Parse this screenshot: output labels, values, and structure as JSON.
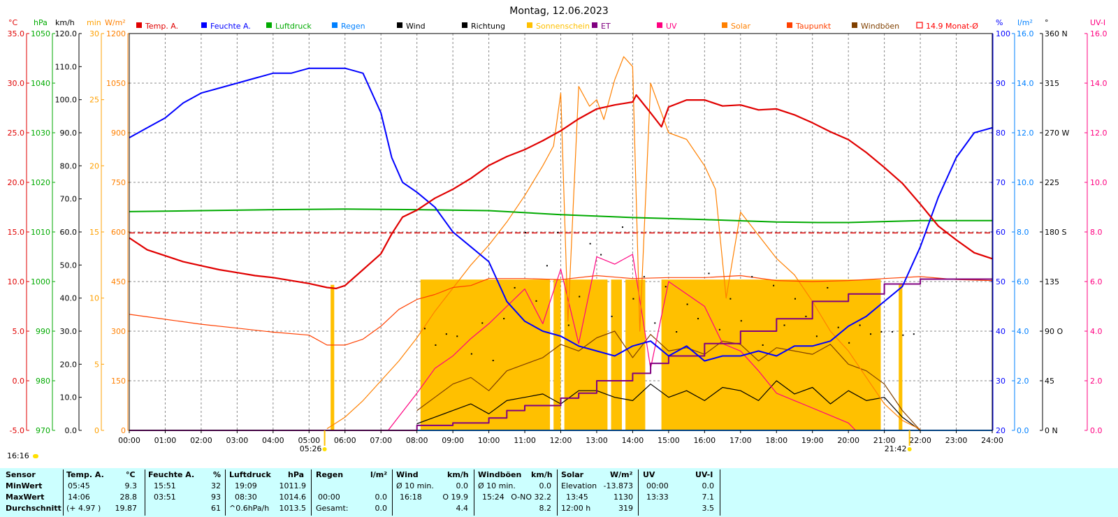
{
  "title": "Montag, 12.06.2023",
  "now_time": "16:16",
  "sunrise": "05:26",
  "sunset": "21:42",
  "legend": [
    {
      "label": "Temp. A.",
      "color": "#e00000",
      "type": "box"
    },
    {
      "label": "Feuchte A.",
      "color": "#0000ff",
      "type": "box"
    },
    {
      "label": "Luftdruck",
      "color": "#00aa00",
      "type": "box"
    },
    {
      "label": "Regen",
      "color": "#0080ff",
      "type": "box"
    },
    {
      "label": "Wind",
      "color": "#000000",
      "type": "box"
    },
    {
      "label": "Richtung",
      "color": "#000000",
      "type": "box"
    },
    {
      "label": "Sonnenschein",
      "color": "#ffc000",
      "type": "box"
    },
    {
      "label": "ET",
      "color": "#800080",
      "type": "box"
    },
    {
      "label": "UV",
      "color": "#ff0080",
      "type": "box"
    },
    {
      "label": "Solar",
      "color": "#ff8000",
      "type": "box"
    },
    {
      "label": "Taupunkt",
      "color": "#ff4000",
      "type": "box"
    },
    {
      "label": "Windböen",
      "color": "#804000",
      "type": "box"
    },
    {
      "label": "14.9 Monat-Ø",
      "color": "#ff0000",
      "type": "open"
    }
  ],
  "axis_units": {
    "temp": "°C",
    "pressure": "hPa",
    "wind": "km/h",
    "sunmin": "min",
    "solar": "W/m²",
    "humidity": "%",
    "rain": "l/m²",
    "direction": "°",
    "uvi": "UV-I"
  },
  "colors": {
    "temp_axis": "#e00000",
    "pressure_axis": "#00aa00",
    "wind_axis": "#000000",
    "sunmin_axis": "#ffa000",
    "solar_axis": "#ff8000",
    "humidity_axis": "#0000ff",
    "rain_axis": "#0080ff",
    "direction_axis": "#000000",
    "uvi_axis": "#ff0080",
    "stats_bg": "#ccffff"
  },
  "chart_data": {
    "type": "line",
    "title": "Montag, 12.06.2023",
    "x_ticks": [
      "00:00",
      "01:00",
      "02:00",
      "03:00",
      "04:00",
      "05:00",
      "06:00",
      "07:00",
      "08:00",
      "09:00",
      "10:00",
      "11:00",
      "12:00",
      "13:00",
      "14:00",
      "15:00",
      "16:00",
      "17:00",
      "18:00",
      "19:00",
      "20:00",
      "21:00",
      "22:00",
      "23:00",
      "24:00"
    ],
    "xlim_hours": [
      0,
      24
    ],
    "axes": {
      "temp": {
        "ylim": [
          -5,
          35
        ],
        "ticks": [
          "35.0",
          "30.0",
          "25.0",
          "20.0",
          "15.0",
          "10.0",
          "5.0",
          "0.0",
          "-5.0"
        ]
      },
      "pressure": {
        "ylim": [
          970,
          1050
        ],
        "ticks": [
          "1050",
          "1040",
          "1030",
          "1020",
          "1010",
          "1000",
          "990",
          "980",
          "970"
        ]
      },
      "wind": {
        "ylim": [
          0,
          120
        ],
        "ticks": [
          "120.0",
          "110.0",
          "100.0",
          "90.0",
          "80.0",
          "70.0",
          "60.0",
          "50.0",
          "40.0",
          "30.0",
          "20.0",
          "10.0",
          "0.0"
        ]
      },
      "sunmin": {
        "ylim": [
          0,
          30
        ],
        "ticks": [
          "30",
          "25",
          "20",
          "15",
          "10",
          "5",
          "0"
        ]
      },
      "solar": {
        "ylim": [
          0,
          1200
        ],
        "ticks": [
          "1200",
          "1050",
          "900",
          "750",
          "600",
          "450",
          "300",
          "150",
          "0"
        ]
      },
      "humidity": {
        "ylim": [
          20,
          100
        ],
        "ticks": [
          "100",
          "90",
          "80",
          "70",
          "60",
          "50",
          "40",
          "30",
          "20"
        ]
      },
      "rain": {
        "ylim": [
          0,
          16
        ],
        "ticks": [
          "16.0",
          "14.0",
          "12.0",
          "10.0",
          "8.0",
          "6.0",
          "4.0",
          "2.0",
          "0.0"
        ]
      },
      "direction": {
        "ylim": [
          0,
          360
        ],
        "ticks": [
          "360 N",
          "315",
          "270 W",
          "225",
          "180 S",
          "135",
          "90 O",
          "45",
          "0 N"
        ]
      },
      "uvi": {
        "ylim": [
          0,
          16
        ],
        "ticks": [
          "16.0",
          "14.0",
          "12.0",
          "10.0",
          "8.0",
          "6.0",
          "4.0",
          "2.0",
          "0.0"
        ]
      }
    },
    "series": [
      {
        "name": "Temp. A.",
        "axis": "temp",
        "x": [
          0,
          0.5,
          1,
          1.5,
          2,
          2.5,
          3,
          3.5,
          4,
          4.5,
          5,
          5.5,
          5.75,
          6,
          6.5,
          7,
          7.3,
          7.6,
          8,
          8.5,
          9,
          9.5,
          10,
          10.5,
          11,
          11.5,
          12,
          12.5,
          13,
          13.5,
          14,
          14.1,
          14.5,
          14.8,
          15,
          15.5,
          16,
          16.5,
          17,
          17.5,
          18,
          18.5,
          19,
          19.5,
          20,
          20.5,
          21,
          21.5,
          22,
          22.5,
          23,
          23.5,
          24
        ],
        "y": [
          14.4,
          13.2,
          12.6,
          12.0,
          11.6,
          11.2,
          10.9,
          10.6,
          10.4,
          10.1,
          9.8,
          9.4,
          9.3,
          9.6,
          11.2,
          12.8,
          14.8,
          16.5,
          17.2,
          18.4,
          19.3,
          20.4,
          21.7,
          22.6,
          23.3,
          24.2,
          25.2,
          26.4,
          27.4,
          27.8,
          28.1,
          28.8,
          27.0,
          25.6,
          27.6,
          28.3,
          28.3,
          27.7,
          27.8,
          27.3,
          27.4,
          26.8,
          26.0,
          25.1,
          24.3,
          23.0,
          21.5,
          19.9,
          17.8,
          15.6,
          14.2,
          12.9,
          12.3
        ]
      },
      {
        "name": "Feuchte A.",
        "axis": "humidity",
        "x": [
          0,
          0.5,
          1,
          1.5,
          2,
          2.5,
          3,
          3.5,
          4,
          4.5,
          5,
          5.5,
          6,
          6.5,
          7,
          7.3,
          7.6,
          8,
          8.5,
          9,
          9.5,
          10,
          10.5,
          11,
          11.5,
          12,
          12.5,
          13,
          13.5,
          14,
          14.5,
          15,
          15.5,
          16,
          16.5,
          17,
          17.5,
          18,
          18.5,
          19,
          19.5,
          20,
          20.5,
          21,
          21.5,
          22,
          22.5,
          23,
          23.5,
          24
        ],
        "y": [
          79,
          81,
          83,
          86,
          88,
          89,
          90,
          91,
          92,
          92,
          93,
          93,
          93,
          92,
          84,
          75,
          70,
          68,
          65,
          60,
          57,
          54,
          46,
          42,
          40,
          39,
          37,
          36,
          35,
          37,
          38,
          35,
          37,
          34,
          35,
          35,
          36,
          35,
          37,
          37,
          38,
          41,
          43,
          46,
          49,
          57,
          67,
          75,
          80,
          81
        ]
      },
      {
        "name": "Luftdruck",
        "axis": "pressure",
        "x": [
          0,
          2,
          4,
          6,
          8,
          10,
          12,
          14,
          16,
          18,
          19.15,
          20,
          22,
          24
        ],
        "y": [
          1014.1,
          1014.3,
          1014.5,
          1014.6,
          1014.5,
          1014.3,
          1013.5,
          1012.9,
          1012.5,
          1012.0,
          1011.9,
          1011.9,
          1012.3,
          1012.3
        ]
      },
      {
        "name": "Taupunkt",
        "axis": "temp",
        "x": [
          0,
          1,
          2,
          3,
          4,
          5,
          5.5,
          6,
          6.5,
          7,
          7.5,
          8,
          8.5,
          9,
          9.5,
          10,
          11,
          12,
          13,
          14,
          15,
          16,
          17,
          18,
          19,
          20,
          21,
          22,
          23,
          24
        ],
        "y": [
          6.7,
          6.2,
          5.7,
          5.3,
          4.9,
          4.6,
          3.6,
          3.6,
          4.2,
          5.5,
          7.2,
          8.2,
          8.7,
          9.4,
          9.6,
          10.3,
          10.3,
          10.2,
          10.6,
          10.3,
          10.4,
          10.4,
          10.6,
          10.1,
          10.0,
          10.1,
          10.3,
          10.5,
          10.2,
          10.1
        ]
      },
      {
        "name": "Solar",
        "axis": "solar",
        "x": [
          5.5,
          6,
          6.5,
          7,
          7.5,
          8,
          8.5,
          9,
          9.5,
          10,
          10.5,
          11,
          11.5,
          11.8,
          12,
          12.2,
          12.5,
          12.8,
          13,
          13.2,
          13.5,
          13.75,
          14,
          14.2,
          14.5,
          15,
          15.5,
          16,
          16.3,
          16.6,
          17,
          17.5,
          18,
          18.5,
          19,
          19.5,
          20,
          20.5,
          21,
          21.5,
          22
        ],
        "y": [
          5,
          40,
          90,
          150,
          210,
          280,
          360,
          430,
          500,
          560,
          630,
          710,
          800,
          860,
          1020,
          330,
          1040,
          980,
          1000,
          940,
          1060,
          1130,
          1100,
          300,
          1050,
          900,
          880,
          800,
          730,
          400,
          660,
          590,
          520,
          470,
          390,
          300,
          240,
          160,
          80,
          30,
          3
        ]
      },
      {
        "name": "UV",
        "axis": "uvi",
        "x": [
          7.2,
          8,
          8.5,
          9,
          9.5,
          10,
          10.5,
          11,
          11.5,
          12,
          12.5,
          13,
          13.5,
          14,
          14.5,
          15,
          15.5,
          16,
          16.5,
          17,
          17.5,
          18,
          18.5,
          19,
          19.5,
          20,
          20.2
        ],
        "y": [
          0,
          1.5,
          2.5,
          3.0,
          3.7,
          4.3,
          5.0,
          5.7,
          4.3,
          6.5,
          3.5,
          7.0,
          6.7,
          7.1,
          2.5,
          6.0,
          5.5,
          5.0,
          3.5,
          3.2,
          2.4,
          1.5,
          1.2,
          0.9,
          0.6,
          0.3,
          0
        ]
      },
      {
        "name": "ET",
        "axis": "rain",
        "x": [
          0,
          7,
          8,
          9,
          10,
          10.5,
          11,
          12,
          12.5,
          13,
          14,
          14.5,
          15,
          16,
          17,
          18,
          19,
          20,
          21,
          22,
          24
        ],
        "y": [
          0,
          0,
          0.2,
          0.3,
          0.5,
          0.8,
          1.0,
          1.3,
          1.5,
          2.0,
          2.3,
          2.7,
          3.0,
          3.5,
          4.0,
          4.5,
          5.2,
          5.5,
          5.9,
          6.1,
          6.1
        ]
      },
      {
        "name": "Wind",
        "axis": "wind",
        "x": [
          8,
          8.5,
          9,
          9.5,
          10,
          10.5,
          11,
          11.5,
          12,
          12.5,
          13,
          13.5,
          14,
          14.5,
          15,
          15.5,
          16,
          16.5,
          17,
          17.5,
          18,
          18.5,
          19,
          19.5,
          20,
          20.5,
          21,
          21.5,
          22
        ],
        "y": [
          2,
          4,
          6,
          8,
          5,
          9,
          10,
          11,
          8,
          12,
          12,
          10,
          9,
          14,
          10,
          12,
          9,
          13,
          12,
          9,
          15,
          11,
          13,
          8,
          12,
          9,
          10,
          4,
          0
        ]
      },
      {
        "name": "Windböen",
        "axis": "wind",
        "x": [
          8,
          8.5,
          9,
          9.5,
          10,
          10.5,
          11,
          11.5,
          12,
          12.5,
          13,
          13.5,
          14,
          14.5,
          15,
          15.5,
          16,
          16.5,
          17,
          17.5,
          18,
          18.5,
          19,
          19.5,
          20,
          20.5,
          21,
          21.5,
          22
        ],
        "y": [
          6,
          10,
          14,
          16,
          12,
          18,
          20,
          22,
          26,
          24,
          28,
          30,
          22,
          29,
          24,
          25,
          23,
          27,
          26,
          21,
          25,
          24,
          23,
          26,
          20,
          18,
          14,
          6,
          0
        ]
      },
      {
        "name": "Regen",
        "axis": "rain",
        "x": [
          0,
          24
        ],
        "y": [
          0,
          0
        ]
      }
    ],
    "month_average_temp": 14.9,
    "sunshine_minutes": [
      {
        "from": 5.6,
        "to": 5.7,
        "value": 11
      },
      {
        "from": 8.1,
        "to": 11.7,
        "value": 11.4
      },
      {
        "from": 11.8,
        "to": 12.0,
        "value": 11.4
      },
      {
        "from": 12.1,
        "to": 13.3,
        "value": 11.4
      },
      {
        "from": 13.4,
        "to": 13.7,
        "value": 11.4
      },
      {
        "from": 13.8,
        "to": 14.35,
        "value": 11.4
      },
      {
        "from": 14.8,
        "to": 20.9,
        "value": 11.4
      },
      {
        "from": 21.4,
        "to": 21.5,
        "value": 11
      }
    ],
    "direction_points": [
      {
        "x": 8.2,
        "y": 93
      },
      {
        "x": 8.5,
        "y": 78
      },
      {
        "x": 8.8,
        "y": 88
      },
      {
        "x": 9.1,
        "y": 86
      },
      {
        "x": 9.5,
        "y": 70
      },
      {
        "x": 9.8,
        "y": 98
      },
      {
        "x": 10.1,
        "y": 64
      },
      {
        "x": 10.4,
        "y": 102
      },
      {
        "x": 10.7,
        "y": 130
      },
      {
        "x": 11.0,
        "y": 180
      },
      {
        "x": 11.3,
        "y": 118
      },
      {
        "x": 11.6,
        "y": 150
      },
      {
        "x": 11.9,
        "y": 180
      },
      {
        "x": 12.2,
        "y": 96
      },
      {
        "x": 12.5,
        "y": 122
      },
      {
        "x": 12.8,
        "y": 170
      },
      {
        "x": 13.1,
        "y": 160
      },
      {
        "x": 13.4,
        "y": 104
      },
      {
        "x": 13.7,
        "y": 185
      },
      {
        "x": 14.0,
        "y": 120
      },
      {
        "x": 14.3,
        "y": 140
      },
      {
        "x": 14.6,
        "y": 98
      },
      {
        "x": 14.9,
        "y": 131
      },
      {
        "x": 15.2,
        "y": 90
      },
      {
        "x": 15.5,
        "y": 115
      },
      {
        "x": 15.8,
        "y": 102
      },
      {
        "x": 16.1,
        "y": 143
      },
      {
        "x": 16.4,
        "y": 92
      },
      {
        "x": 16.7,
        "y": 120
      },
      {
        "x": 17.0,
        "y": 100
      },
      {
        "x": 17.3,
        "y": 140
      },
      {
        "x": 17.6,
        "y": 78
      },
      {
        "x": 17.9,
        "y": 132
      },
      {
        "x": 18.2,
        "y": 96
      },
      {
        "x": 18.5,
        "y": 120
      },
      {
        "x": 18.8,
        "y": 104
      },
      {
        "x": 19.1,
        "y": 86
      },
      {
        "x": 19.4,
        "y": 130
      },
      {
        "x": 19.7,
        "y": 94
      },
      {
        "x": 20.0,
        "y": 80
      },
      {
        "x": 20.3,
        "y": 96
      },
      {
        "x": 20.6,
        "y": 88
      },
      {
        "x": 20.9,
        "y": 90
      },
      {
        "x": 21.2,
        "y": 90
      },
      {
        "x": 21.5,
        "y": 87
      },
      {
        "x": 21.8,
        "y": 88
      }
    ]
  },
  "stats": {
    "rows": [
      "Sensor",
      "MinWert",
      "MaxWert",
      "Durchschnitt"
    ],
    "temp": {
      "header": "Temp. A.",
      "unit": "°C",
      "min_time": "05:45",
      "min": "9.3",
      "max_time": "14:06",
      "max": "28.8",
      "avg_extra": "(+ 4.97 )",
      "avg": "19.87"
    },
    "humidity": {
      "header": "Feuchte A.",
      "unit": "%",
      "min_time": "15:51",
      "min": "32",
      "max_time": "03:51",
      "max": "93",
      "avg": "61"
    },
    "pressure": {
      "header": "Luftdruck",
      "unit": "hPa",
      "min_time": "19:09",
      "min": "1011.9",
      "max_time": "08:30",
      "max": "1014.6",
      "avg_extra": "^0.6hPa/h",
      "avg": "1013.5"
    },
    "rain": {
      "header": "Regen",
      "unit": "l/m²",
      "max_time": "00:00",
      "max": "0.0",
      "avg_label": "Gesamt:",
      "avg": "0.0"
    },
    "wind": {
      "header": "Wind",
      "unit": "km/h",
      "min_label": "Ø 10 min.",
      "min": "0.0",
      "max_time": "16:18",
      "max": "O 19.9",
      "avg": "4.4"
    },
    "gusts": {
      "header": "Windböen",
      "unit": "km/h",
      "min_label": "Ø 10 min.",
      "min": "0.0",
      "max_time": "15:24",
      "max": "O-NO 32.2",
      "avg": "8.2"
    },
    "solar": {
      "header": "Solar",
      "unit": "W/m²",
      "min_label": "Elevation",
      "min": "-13.873",
      "max_time": "13:45",
      "max": "1130",
      "avg_label": "12:00 h",
      "avg": "319"
    },
    "uv": {
      "header": "UV",
      "unit": "UV-I",
      "min_time": "00:00",
      "min": "0.0",
      "max_time": "13:33",
      "max": "7.1",
      "avg": "3.5"
    }
  }
}
